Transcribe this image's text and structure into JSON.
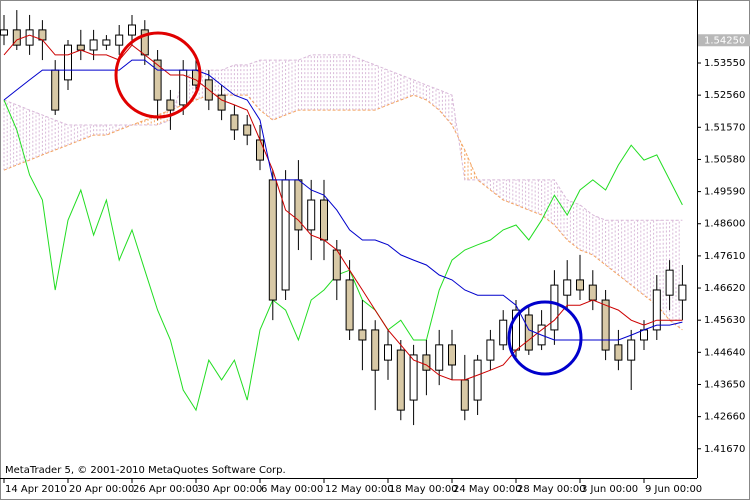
{
  "chart_data": {
    "type": "candlestick",
    "watermark": "MetaTrader 5, © 2001-2010 MetaQuotes Software Corp.",
    "categories": [
      "14 Apr 2010",
      null,
      null,
      null,
      null,
      "20 Apr 00:00",
      null,
      null,
      null,
      null,
      "26 Apr 00:00",
      null,
      null,
      null,
      null,
      "30 Apr 00:00",
      null,
      null,
      null,
      null,
      "6 May 00:00",
      null,
      null,
      null,
      null,
      "12 May 00:00",
      null,
      null,
      null,
      null,
      "18 May 00:00",
      null,
      null,
      null,
      null,
      "24 May 00:00",
      null,
      null,
      null,
      null,
      "28 May 00:00",
      null,
      null,
      null,
      null,
      "3 Jun 00:00",
      null,
      null,
      null,
      null,
      "9 Jun 00:00",
      null,
      null,
      null
    ],
    "open": [
      1.5441,
      1.5457,
      1.541,
      1.5457,
      1.5333,
      1.5303,
      1.541,
      1.5395,
      1.541,
      1.541,
      1.5441,
      1.5457,
      1.5364,
      1.5241,
      1.5226,
      1.5333,
      1.5303,
      1.5256,
      1.5195,
      1.5164,
      1.5118,
      1.4995,
      1.4656,
      1.4995,
      1.4841,
      1.4933,
      1.4779,
      1.4687,
      1.4533,
      1.4533,
      1.444,
      1.4471,
      1.4317,
      1.4456,
      1.4409,
      1.4487,
      1.4379,
      1.4317,
      1.444,
      1.4487,
      1.4471,
      1.4579,
      1.4487,
      1.4533,
      1.464,
      1.4687,
      1.4671,
      1.4625,
      1.4487,
      1.444,
      1.4502,
      1.4533,
      1.464,
      1.4625
    ],
    "high": [
      1.5503,
      1.5518,
      1.5503,
      1.5487,
      1.5364,
      1.5426,
      1.5457,
      1.5457,
      1.5441,
      1.5472,
      1.5503,
      1.5487,
      1.5395,
      1.5272,
      1.5364,
      1.5364,
      1.5333,
      1.5287,
      1.5226,
      1.5195,
      1.5164,
      1.5025,
      1.5025,
      1.5056,
      1.4995,
      1.4995,
      1.481,
      1.4748,
      1.4625,
      1.4563,
      1.4533,
      1.4502,
      1.4487,
      1.4502,
      1.4533,
      1.4533,
      1.4456,
      1.4456,
      1.4533,
      1.4594,
      1.4625,
      1.4609,
      1.4594,
      1.4717,
      1.4748,
      1.4764,
      1.4717,
      1.4656,
      1.4533,
      1.4533,
      1.4563,
      1.4702,
      1.4748,
      1.4733
    ],
    "low": [
      1.541,
      1.5395,
      1.538,
      1.5364,
      1.5195,
      1.5272,
      1.5364,
      1.5364,
      1.5395,
      1.538,
      1.541,
      1.5349,
      1.5179,
      1.5149,
      1.5195,
      1.5256,
      1.521,
      1.5179,
      1.5118,
      1.5102,
      1.5025,
      1.4563,
      1.4625,
      1.4779,
      1.4748,
      1.4748,
      1.4625,
      1.4502,
      1.4409,
      1.4286,
      1.4379,
      1.4255,
      1.424,
      1.4332,
      1.4363,
      1.4379,
      1.4255,
      1.4271,
      1.4409,
      1.4471,
      1.444,
      1.4456,
      1.4471,
      1.4487,
      1.4594,
      1.4625,
      1.4594,
      1.444,
      1.4409,
      1.4348,
      1.4471,
      1.4502,
      1.4594,
      1.4563
    ],
    "close": [
      1.5457,
      1.541,
      1.5457,
      1.5426,
      1.521,
      1.541,
      1.5395,
      1.5426,
      1.5426,
      1.5441,
      1.5472,
      1.538,
      1.5241,
      1.521,
      1.5333,
      1.5287,
      1.5241,
      1.521,
      1.5149,
      1.5133,
      1.5056,
      1.4625,
      1.4995,
      1.4841,
      1.4933,
      1.481,
      1.4687,
      1.4533,
      1.4502,
      1.4409,
      1.4487,
      1.4286,
      1.4456,
      1.4409,
      1.4487,
      1.4425,
      1.4286,
      1.444,
      1.4502,
      1.4563,
      1.4594,
      1.4471,
      1.4548,
      1.4671,
      1.4687,
      1.4656,
      1.4625,
      1.4471,
      1.444,
      1.4502,
      1.4533,
      1.4656,
      1.4717,
      1.4671
    ],
    "up_color": "#ffffff",
    "down_color": "#d8c9a6",
    "tenkan": {
      "color": "#cc0000",
      "values": [
        1.538,
        1.5426,
        1.5441,
        1.5426,
        1.538,
        1.538,
        1.5395,
        1.538,
        1.538,
        1.5364,
        1.541,
        1.538,
        1.5349,
        1.5318,
        1.5318,
        1.5303,
        1.5272,
        1.5241,
        1.5226,
        1.521,
        1.5118,
        1.5025,
        1.4902,
        1.4871,
        1.4825,
        1.481,
        1.4779,
        1.4717,
        1.4656,
        1.4594,
        1.4533,
        1.4487,
        1.444,
        1.4425,
        1.4394,
        1.4379,
        1.4379,
        1.4394,
        1.4409,
        1.4425,
        1.4471,
        1.4502,
        1.4533,
        1.4563,
        1.4609,
        1.4609,
        1.4625,
        1.4609,
        1.4594,
        1.4563,
        1.4548,
        1.4563,
        1.4563,
        1.4563
      ]
    },
    "kijun": {
      "color": "#0000cc",
      "values": [
        1.5241,
        1.5272,
        1.5303,
        1.5333,
        1.5333,
        1.5333,
        1.5333,
        1.5333,
        1.5333,
        1.5333,
        1.5364,
        1.5364,
        1.5333,
        1.5333,
        1.5333,
        1.5333,
        1.5318,
        1.5287,
        1.5256,
        1.5241,
        1.5179,
        1.4995,
        1.4995,
        1.4995,
        1.4964,
        1.4948,
        1.4902,
        1.4841,
        1.481,
        1.481,
        1.4795,
        1.4764,
        1.4748,
        1.4733,
        1.4702,
        1.4687,
        1.4656,
        1.464,
        1.464,
        1.464,
        1.4609,
        1.4533,
        1.4517,
        1.4502,
        1.4502,
        1.4502,
        1.4502,
        1.4502,
        1.4502,
        1.4517,
        1.4533,
        1.4548,
        1.4548,
        1.4557
      ]
    },
    "chikou": {
      "color": "#22dd22",
      "values": [
        1.5241,
        1.5149,
        1.501,
        1.4933,
        1.4656,
        1.4871,
        1.4964,
        1.4825,
        1.4933,
        1.4748,
        1.4841,
        1.4717,
        1.4594,
        1.4502,
        1.4348,
        1.4286,
        1.444,
        1.4379,
        1.444,
        1.4317,
        1.4533,
        1.4625,
        1.4594,
        1.4502,
        1.4625,
        1.4656,
        1.4702,
        1.4717,
        1.4625,
        1.4594,
        1.4533,
        1.4563,
        1.4502,
        1.4502,
        1.4656,
        1.4748,
        1.4779,
        1.4795,
        1.481,
        1.4841,
        1.4856,
        1.481,
        1.4871,
        1.4948,
        1.4887,
        1.4964,
        1.4995,
        1.4964,
        1.5041,
        1.5102,
        1.5056,
        1.5072,
        1.4995,
        1.4918
      ]
    },
    "senkou_a": {
      "color": "#f4a460",
      "values": [
        1.5025,
        1.5041,
        1.5056,
        1.5072,
        1.5087,
        1.5102,
        1.5118,
        1.5133,
        1.5133,
        1.5149,
        1.5164,
        1.5179,
        1.5195,
        1.521,
        1.5226,
        1.5241,
        1.5256,
        1.5256,
        1.5256,
        1.5256,
        1.521,
        1.5179,
        1.5195,
        1.521,
        1.521,
        1.521,
        1.521,
        1.521,
        1.521,
        1.521,
        1.5226,
        1.5241,
        1.5256,
        1.5241,
        1.521,
        1.5164,
        1.5087,
        1.4995,
        1.4964,
        1.4933,
        1.4918,
        1.4902,
        1.4887,
        1.4856,
        1.481,
        1.4779,
        1.4764,
        1.4733,
        1.4702,
        1.4671,
        1.464,
        1.4609,
        1.4563,
        1.4533
      ]
    },
    "senkou_b": {
      "color": "#d8b8d8",
      "values": [
        1.5241,
        1.5226,
        1.521,
        1.5195,
        1.5179,
        1.5164,
        1.5164,
        1.5164,
        1.5164,
        1.5164,
        1.5164,
        1.5164,
        1.5164,
        1.5179,
        1.5303,
        1.5333,
        1.5333,
        1.5333,
        1.5349,
        1.5349,
        1.5364,
        1.5364,
        1.5364,
        1.5364,
        1.538,
        1.538,
        1.538,
        1.538,
        1.5364,
        1.5349,
        1.5333,
        1.5318,
        1.5303,
        1.5287,
        1.5272,
        1.5256,
        1.4995,
        1.4995,
        1.4995,
        1.4995,
        1.4995,
        1.4995,
        1.4995,
        1.4995,
        1.4933,
        1.4918,
        1.4887,
        1.4871,
        1.4871,
        1.4871,
        1.4871,
        1.4871,
        1.4871,
        1.4871
      ]
    },
    "ylim": [
      1.4077,
      1.5549
    ],
    "yticks": [
      {
        "value": 1.5355,
        "label": "1.53550"
      },
      {
        "value": 1.5256,
        "label": "1.52560"
      },
      {
        "value": 1.5157,
        "label": "1.51570"
      },
      {
        "value": 1.5058,
        "label": "1.50580"
      },
      {
        "value": 1.4959,
        "label": "1.49590"
      },
      {
        "value": 1.486,
        "label": "1.48600"
      },
      {
        "value": 1.4761,
        "label": "1.47610"
      },
      {
        "value": 1.4662,
        "label": "1.46620"
      },
      {
        "value": 1.4563,
        "label": "1.45630"
      },
      {
        "value": 1.4464,
        "label": "1.44640"
      },
      {
        "value": 1.4365,
        "label": "1.43650"
      },
      {
        "value": 1.4266,
        "label": "1.42660"
      },
      {
        "value": 1.4167,
        "label": "1.41670"
      }
    ],
    "price_label": {
      "value": 1.5425,
      "label": "1.54250"
    },
    "grid": false
  }
}
